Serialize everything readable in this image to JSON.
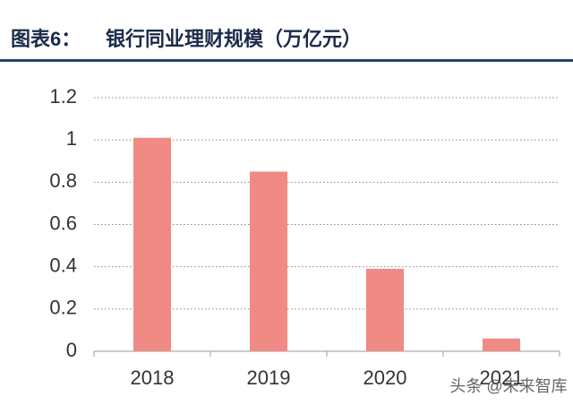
{
  "chart_data": {
    "type": "bar",
    "title_label": "图表6：",
    "title": "银行同业理财规模（万亿元）",
    "categories": [
      "2018",
      "2019",
      "2020",
      "2021"
    ],
    "values": [
      1.01,
      0.85,
      0.39,
      0.06
    ],
    "color": "#f08a84",
    "ylim": [
      0,
      1.2
    ],
    "yticks": [
      0,
      0.2,
      0.4,
      0.6,
      0.8,
      1,
      1.2
    ],
    "grid": true,
    "watermark": "头条 @未来智库"
  }
}
